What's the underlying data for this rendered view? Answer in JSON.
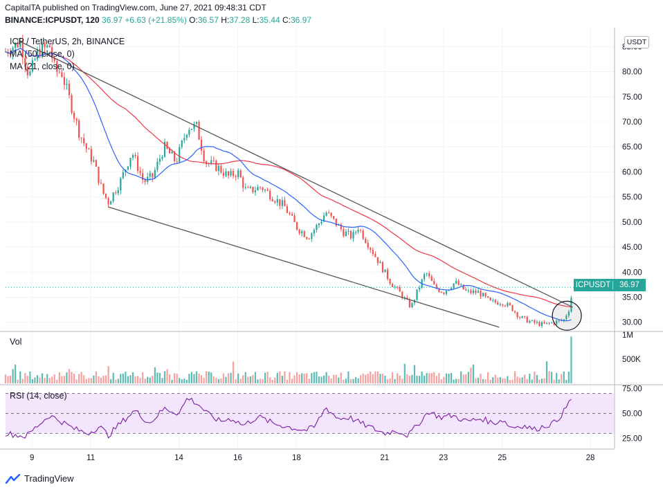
{
  "header": {
    "published": "CapitalTA published on TradingView.com, June 27, 2021 09:48:31 CDT",
    "symbol": "BINANCE:ICPUSDT, 120",
    "last": "36.97",
    "change": "+6.63 (+21.85%)",
    "ohlc_o_label": "O:",
    "ohlc_o": "36.57",
    "ohlc_h_label": "H:",
    "ohlc_h": "37.28",
    "ohlc_l_label": "L:",
    "ohlc_l": "35.44",
    "ohlc_c_label": "C:",
    "ohlc_c": "36.97"
  },
  "legend": {
    "pair": "ICP / TetherUS, 2h, BINANCE",
    "ma50": "MA (50, close, 0)",
    "ma21": "MA (21, close, 0)",
    "vol": "Vol",
    "rsi": "RSI (14, close)"
  },
  "currency_button": "USDT",
  "price_tag": {
    "symbol": "ICPUSDT",
    "value": "36.97"
  },
  "footer": {
    "brand": "TradingView"
  },
  "colors": {
    "up": "#26a69a",
    "down": "#ef5350",
    "ma50": "#f23645",
    "ma21": "#2962ff",
    "rsi": "#7b1fa2",
    "rsi_band": "#f3e5fb",
    "trend": "#555555"
  },
  "chart_data": [
    {
      "type": "candlestick",
      "title": "ICP / TetherUS, 2h, BINANCE",
      "x_ticks": [
        "9",
        "11",
        "14",
        "16",
        "18",
        "21",
        "23",
        "25",
        "28"
      ],
      "x_range_days": [
        8.1,
        28.8
      ],
      "y_ticks": [
        "85.00",
        "80.00",
        "75.00",
        "70.00",
        "65.00",
        "60.00",
        "55.00",
        "50.00",
        "45.00",
        "40.00",
        "35.00",
        "30.00"
      ],
      "ylim": [
        28.3,
        88.5
      ],
      "last_price": 36.97,
      "closes_anchors": [
        [
          8.1,
          84
        ],
        [
          8.6,
          86
        ],
        [
          8.9,
          79
        ],
        [
          9.2,
          84
        ],
        [
          9.6,
          85
        ],
        [
          9.8,
          80
        ],
        [
          10.0,
          80
        ],
        [
          10.3,
          74
        ],
        [
          10.6,
          68
        ],
        [
          10.9,
          64
        ],
        [
          11.1,
          62
        ],
        [
          11.4,
          56
        ],
        [
          11.6,
          54
        ],
        [
          12.0,
          58
        ],
        [
          12.4,
          64
        ],
        [
          12.8,
          58
        ],
        [
          13.1,
          59
        ],
        [
          13.5,
          65
        ],
        [
          13.9,
          62
        ],
        [
          14.3,
          69
        ],
        [
          14.6,
          69
        ],
        [
          14.9,
          62
        ],
        [
          15.3,
          61
        ],
        [
          15.7,
          59
        ],
        [
          16.0,
          60
        ],
        [
          16.3,
          56
        ],
        [
          16.8,
          57
        ],
        [
          17.2,
          55
        ],
        [
          17.6,
          53
        ],
        [
          18.0,
          49
        ],
        [
          18.4,
          47
        ],
        [
          18.8,
          50
        ],
        [
          19.0,
          52
        ],
        [
          19.3,
          50
        ],
        [
          19.6,
          48
        ],
        [
          19.9,
          47
        ],
        [
          20.1,
          49
        ],
        [
          20.5,
          45
        ],
        [
          20.8,
          42
        ],
        [
          21.2,
          38
        ],
        [
          21.5,
          36
        ],
        [
          21.9,
          33
        ],
        [
          22.1,
          36
        ],
        [
          22.4,
          40
        ],
        [
          22.7,
          37
        ],
        [
          23.0,
          36
        ],
        [
          23.4,
          38
        ],
        [
          23.8,
          36
        ],
        [
          24.2,
          36
        ],
        [
          24.6,
          34
        ],
        [
          25.0,
          34
        ],
        [
          25.3,
          33
        ],
        [
          25.6,
          31
        ],
        [
          26.0,
          30
        ],
        [
          26.4,
          29.5
        ],
        [
          26.8,
          30
        ],
        [
          27.1,
          30.5
        ],
        [
          27.3,
          33
        ],
        [
          27.4,
          36.97
        ]
      ],
      "trendlines": [
        {
          "from": [
            8.6,
            86
          ],
          "to": [
            27.4,
            33
          ]
        },
        {
          "from": [
            11.6,
            53
          ],
          "to": [
            24.9,
            29
          ]
        }
      ],
      "highlight_circle": {
        "day": 27.2,
        "price": 31.3
      }
    },
    {
      "type": "bar",
      "title": "Vol",
      "y_ticks": [
        "1M",
        "500K"
      ],
      "ylim": [
        0,
        1050000
      ],
      "typical_volume": 200000,
      "final_spike": 960000
    },
    {
      "type": "line",
      "title": "RSI (14, close)",
      "y_ticks": [
        "75.00",
        "50.00",
        "25.00"
      ],
      "ylim": [
        15,
        78
      ],
      "bands": [
        70,
        50,
        30
      ],
      "anchors": [
        [
          8.1,
          30
        ],
        [
          8.8,
          27
        ],
        [
          9.2,
          38
        ],
        [
          9.6,
          48
        ],
        [
          10.0,
          42
        ],
        [
          10.4,
          35
        ],
        [
          10.9,
          30
        ],
        [
          11.3,
          37
        ],
        [
          11.6,
          28
        ],
        [
          12.0,
          40
        ],
        [
          12.5,
          53
        ],
        [
          13.0,
          40
        ],
        [
          13.5,
          55
        ],
        [
          14.0,
          50
        ],
        [
          14.3,
          66
        ],
        [
          14.7,
          58
        ],
        [
          15.0,
          49
        ],
        [
          15.4,
          42
        ],
        [
          15.8,
          45
        ],
        [
          16.2,
          38
        ],
        [
          16.7,
          47
        ],
        [
          17.2,
          40
        ],
        [
          17.8,
          36
        ],
        [
          18.3,
          33
        ],
        [
          18.6,
          36
        ],
        [
          19.0,
          56
        ],
        [
          19.4,
          45
        ],
        [
          19.8,
          46
        ],
        [
          20.2,
          40
        ],
        [
          20.6,
          35
        ],
        [
          21.0,
          30
        ],
        [
          21.4,
          33
        ],
        [
          21.8,
          28
        ],
        [
          22.1,
          38
        ],
        [
          22.5,
          52
        ],
        [
          22.9,
          46
        ],
        [
          23.3,
          48
        ],
        [
          23.8,
          42
        ],
        [
          24.3,
          45
        ],
        [
          24.7,
          40
        ],
        [
          25.0,
          44
        ],
        [
          25.3,
          36
        ],
        [
          25.7,
          38
        ],
        [
          26.1,
          34
        ],
        [
          26.5,
          38
        ],
        [
          26.8,
          41
        ],
        [
          27.1,
          52
        ],
        [
          27.3,
          62
        ],
        [
          27.4,
          68
        ]
      ]
    }
  ]
}
